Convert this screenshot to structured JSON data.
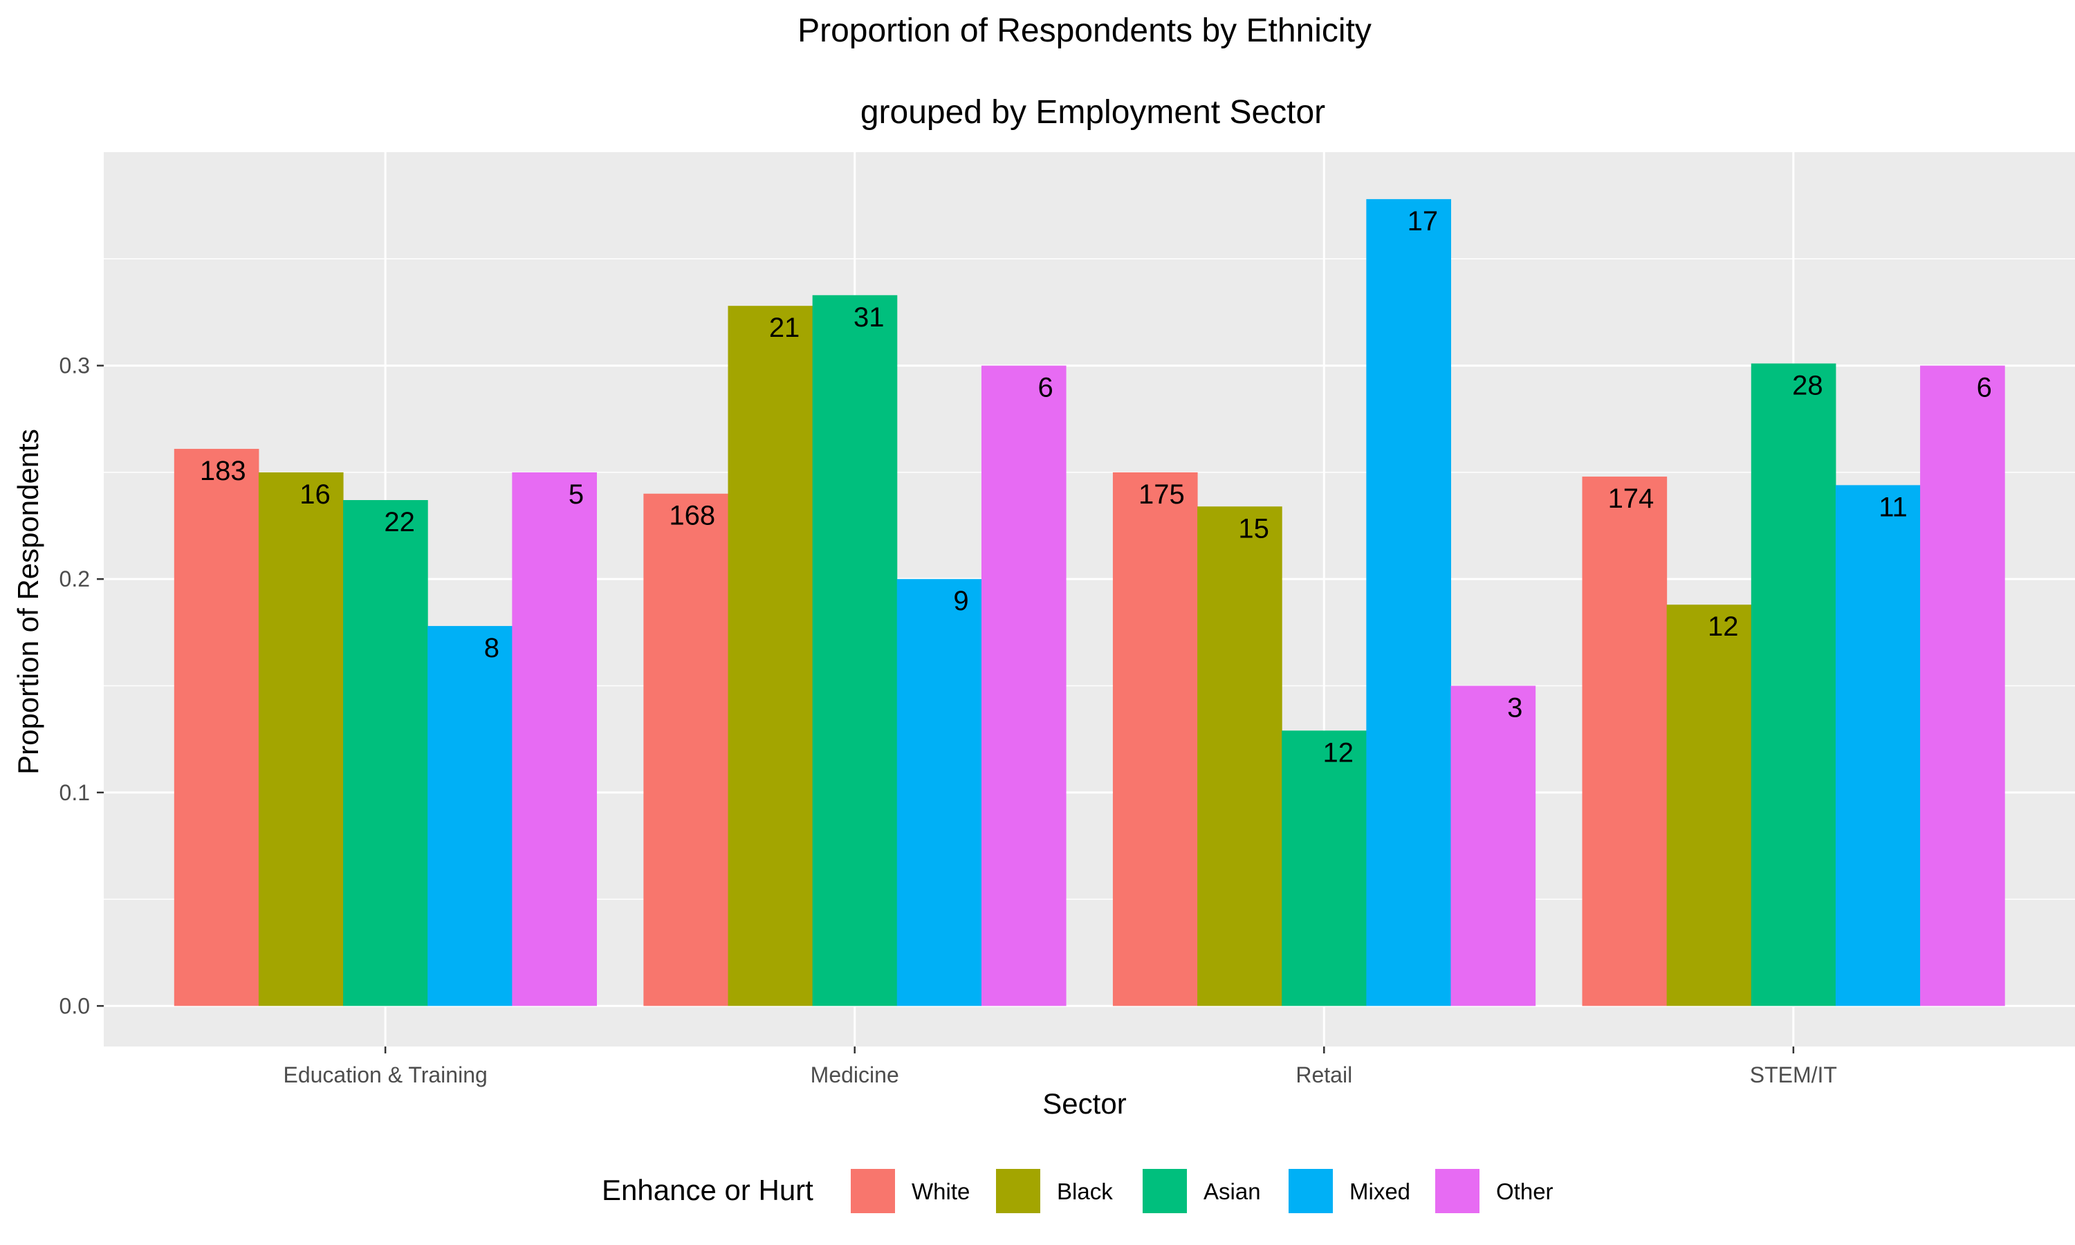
{
  "chart_data": {
    "type": "bar",
    "title": "Proportion of Respondents by Ethnicity",
    "subtitle": "grouped by Employment Sector",
    "xlabel": "Sector",
    "ylabel": "Proportion of Respondents",
    "categories": [
      "Education & Training",
      "Medicine",
      "Retail",
      "STEM/IT"
    ],
    "ylim": [
      -0.019,
      0.4
    ],
    "yticks": [
      0.0,
      0.1,
      0.2,
      0.3
    ],
    "ytick_labels": [
      "0.0",
      "0.1",
      "0.2",
      "0.3"
    ],
    "grid": true,
    "legend": {
      "title": "Enhance or Hurt",
      "placement": "bottom"
    },
    "series": [
      {
        "name": "White",
        "color": "#F8766D",
        "values": [
          0.261,
          0.24,
          0.25,
          0.248
        ],
        "labels": [
          "183",
          "168",
          "175",
          "174"
        ]
      },
      {
        "name": "Black",
        "color": "#A3A500",
        "values": [
          0.25,
          0.328,
          0.234,
          0.188
        ],
        "labels": [
          "16",
          "21",
          "15",
          "12"
        ]
      },
      {
        "name": "Asian",
        "color": "#00BF7D",
        "values": [
          0.237,
          0.333,
          0.129,
          0.301
        ],
        "labels": [
          "22",
          "31",
          "12",
          "28"
        ]
      },
      {
        "name": "Mixed",
        "color": "#00B0F6",
        "values": [
          0.178,
          0.2,
          0.378,
          0.244
        ],
        "labels": [
          "8",
          "9",
          "17",
          "11"
        ]
      },
      {
        "name": "Other",
        "color": "#E76BF3",
        "values": [
          0.25,
          0.3,
          0.15,
          0.3
        ],
        "labels": [
          "5",
          "6",
          "3",
          "6"
        ]
      }
    ]
  }
}
